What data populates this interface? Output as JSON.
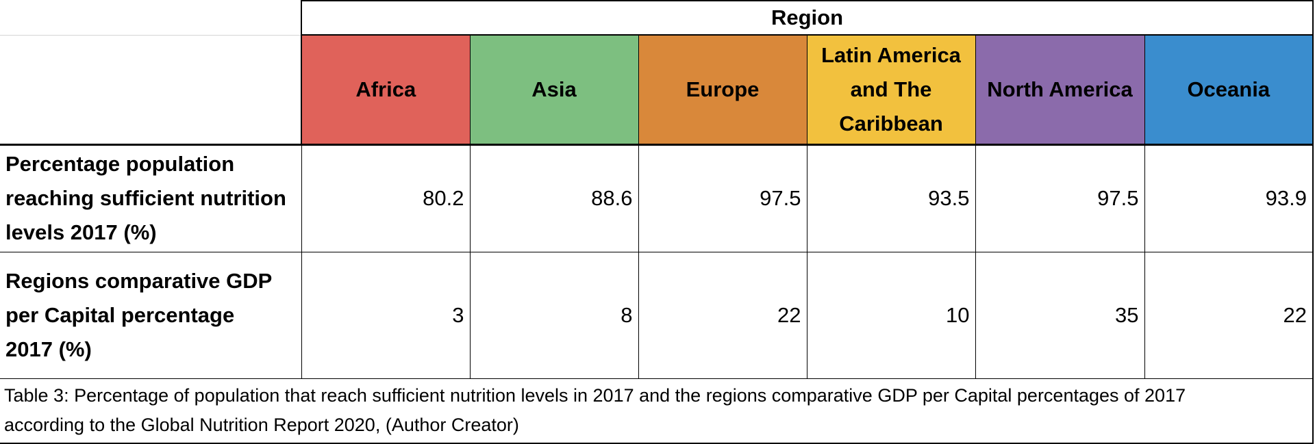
{
  "table": {
    "group_header": "Region",
    "colors": {
      "Africa": "#e0625a",
      "Asia": "#7dbf80",
      "Europe": "#d9883a",
      "Latin America and The Caribbean": "#f2c13e",
      "North America": "#8b6bab",
      "Oceania": "#3a8dce"
    },
    "regions": [
      {
        "lines": [
          "Africa"
        ]
      },
      {
        "lines": [
          "Asia"
        ]
      },
      {
        "lines": [
          "Europe"
        ]
      },
      {
        "lines": [
          "Latin America",
          "and The",
          "Caribbean"
        ]
      },
      {
        "lines": [
          "North America"
        ]
      },
      {
        "lines": [
          "Oceania"
        ]
      }
    ],
    "rows": [
      {
        "label_lines": [
          "Percentage population",
          "reaching sufficient nutrition",
          "levels 2017 (%)"
        ],
        "values": [
          "80.2",
          "88.6",
          "97.5",
          "93.5",
          "97.5",
          "93.9"
        ]
      },
      {
        "label_lines": [
          "Regions comparative GDP",
          "per Capital percentage",
          "2017 (%)"
        ],
        "values": [
          "3",
          "8",
          "22",
          "10",
          "35",
          "22"
        ]
      }
    ],
    "caption_lines": [
      "Table 3: Percentage of population that reach sufficient nutrition levels in 2017 and the regions comparative GDP per Capital percentages of 2017",
      "according to the Global Nutrition Report 2020, (Author Creator)"
    ]
  }
}
